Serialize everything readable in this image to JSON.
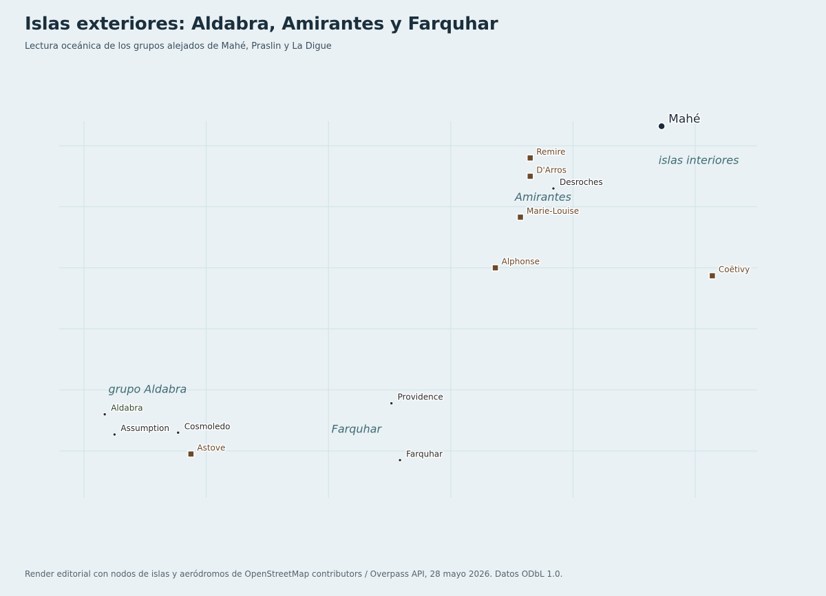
{
  "header": {
    "title": "Islas exteriores: Aldabra, Amirantes y Farquhar",
    "subtitle": "Lectura oceánica de los grupos alejados de Mahé, Praslin y La Digue"
  },
  "footer": {
    "credit": "Render editorial con nodos de islas y aeródromos de OpenStreetMap contributors / Overpass API, 28 mayo 2026. Datos ODbL 1.0."
  },
  "colors": {
    "background": "#e9f1f4",
    "grid": "#cfe3e6",
    "capital": "#1b2a3a",
    "airfield": "#6b4a2b",
    "island": "#2b2b2b",
    "aldabra_label": "#2f4a2c",
    "region_label": "#3f6b73"
  },
  "legend_kinds": {
    "capital": "circle-large",
    "airfield": "square-marker",
    "island": "dot-small"
  },
  "region_labels": [
    {
      "id": "amirantes",
      "text": "Amirantes",
      "lon": 53.05,
      "lat": -5.9
    },
    {
      "id": "inner-islands",
      "text": "islas interiores",
      "lon": 55.4,
      "lat": -5.3
    },
    {
      "id": "aldabra-group",
      "text": "grupo Aldabra",
      "lon": 46.4,
      "lat": -9.05
    },
    {
      "id": "farquhar-group",
      "text": "Farquhar",
      "lon": 50.05,
      "lat": -9.7
    }
  ],
  "places": [
    {
      "id": "mahe",
      "name": "Mahé",
      "kind": "capital",
      "lon": 55.45,
      "lat": -4.68
    },
    {
      "id": "remire",
      "name": "Remire",
      "kind": "airfield",
      "lon": 53.3,
      "lat": -5.2
    },
    {
      "id": "darros",
      "name": "D'Arros",
      "kind": "airfield",
      "lon": 53.3,
      "lat": -5.5
    },
    {
      "id": "desroches",
      "name": "Desroches",
      "kind": "island",
      "lon": 53.68,
      "lat": -5.7
    },
    {
      "id": "marie-louise",
      "name": "Marie-Louise",
      "kind": "airfield",
      "lon": 53.14,
      "lat": -6.17
    },
    {
      "id": "alphonse",
      "name": "Alphonse",
      "kind": "airfield",
      "lon": 52.73,
      "lat": -7.0
    },
    {
      "id": "coetivy",
      "name": "Coëtivy",
      "kind": "airfield",
      "lon": 56.28,
      "lat": -7.13
    },
    {
      "id": "aldabra",
      "name": "Aldabra",
      "kind": "island",
      "lon": 46.34,
      "lat": -9.4
    },
    {
      "id": "assumption",
      "name": "Assumption",
      "kind": "island",
      "lon": 46.5,
      "lat": -9.73
    },
    {
      "id": "cosmoledo",
      "name": "Cosmoledo",
      "kind": "island",
      "lon": 47.54,
      "lat": -9.7
    },
    {
      "id": "astove",
      "name": "Astove",
      "kind": "airfield",
      "lon": 47.75,
      "lat": -10.05
    },
    {
      "id": "providence",
      "name": "Providence",
      "kind": "island",
      "lon": 51.03,
      "lat": -9.22
    },
    {
      "id": "farquhar",
      "name": "Farquhar",
      "kind": "island",
      "lon": 51.17,
      "lat": -10.15
    }
  ]
}
